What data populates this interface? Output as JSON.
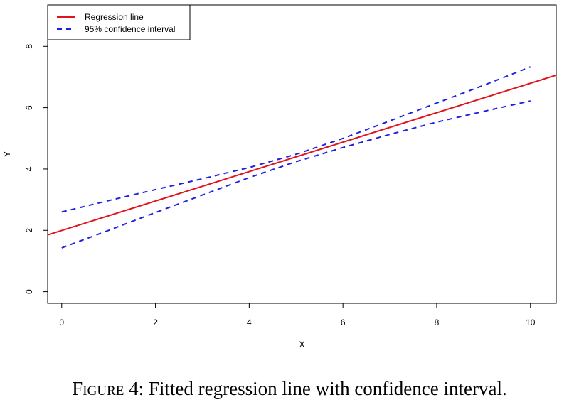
{
  "chart_data": {
    "type": "line",
    "x": [
      0,
      10
    ],
    "series": [
      {
        "name": "Regression line",
        "color": "#e0141c",
        "style": "solid",
        "x": [
          -0.3,
          10.55
        ],
        "y": [
          1.85,
          7.06
        ]
      },
      {
        "name": "95% confidence interval",
        "color": "#2020e0",
        "style": "dashed",
        "x": [
          0,
          1,
          2,
          3,
          4,
          5,
          6,
          7,
          8,
          9,
          10
        ],
        "y": [
          2.6,
          2.97,
          3.33,
          3.68,
          4.05,
          4.48,
          5.0,
          5.57,
          6.15,
          6.73,
          7.33
        ]
      },
      {
        "name": "95% confidence interval",
        "color": "#2020e0",
        "style": "dashed",
        "x": [
          0,
          1,
          2,
          3,
          4,
          5,
          6,
          7,
          8,
          9,
          10
        ],
        "y": [
          1.43,
          2.0,
          2.58,
          3.15,
          3.72,
          4.24,
          4.7,
          5.13,
          5.53,
          5.88,
          6.22
        ]
      }
    ],
    "xlabel": "X",
    "ylabel": "Y",
    "xticks": [
      0,
      2,
      4,
      6,
      8,
      10
    ],
    "yticks": [
      0,
      2,
      4,
      6,
      8
    ],
    "xlim": [
      -0.3,
      10.55
    ],
    "ylim": [
      -0.38,
      9.35
    ],
    "legend": {
      "position": "top-left",
      "entries": [
        {
          "label": "Regression line",
          "color": "#e0141c",
          "style": "solid"
        },
        {
          "label": "95% confidence interval",
          "color": "#2020e0",
          "style": "dashed"
        }
      ]
    },
    "grid": false
  },
  "caption": {
    "prefix": "Figure 4:",
    "text": " Fitted regression line with confidence interval."
  }
}
